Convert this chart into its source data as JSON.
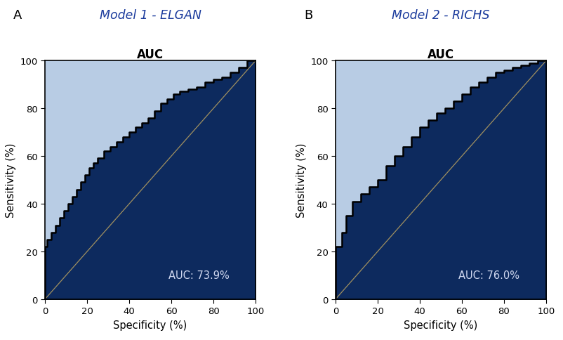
{
  "panel_A": {
    "title_panel": "A",
    "title_model": "Model 1 - ELGAN",
    "subtitle": "AUC",
    "auc_text": "AUC: 73.9%",
    "roc_spec": [
      100,
      100,
      99,
      97,
      95,
      93,
      91,
      89,
      87,
      85,
      83,
      81,
      79,
      77,
      75,
      72,
      69,
      66,
      63,
      60,
      57,
      54,
      51,
      48,
      45,
      42,
      39,
      36,
      32,
      28,
      24,
      20,
      16,
      12,
      8,
      4,
      0
    ],
    "roc_sens": [
      0,
      20,
      22,
      25,
      28,
      31,
      34,
      37,
      40,
      43,
      46,
      49,
      52,
      55,
      57,
      59,
      62,
      64,
      66,
      68,
      70,
      72,
      74,
      76,
      79,
      82,
      84,
      86,
      87,
      88,
      89,
      91,
      92,
      93,
      95,
      97,
      100
    ]
  },
  "panel_B": {
    "title_panel": "B",
    "title_model": "Model 2 - RICHS",
    "subtitle": "AUC",
    "auc_text": "AUC: 76.0%",
    "roc_spec": [
      100,
      100,
      99,
      97,
      95,
      92,
      88,
      84,
      80,
      76,
      72,
      68,
      64,
      60,
      56,
      52,
      48,
      44,
      40,
      36,
      32,
      28,
      24,
      20,
      16,
      12,
      8,
      4,
      0
    ],
    "roc_sens": [
      0,
      22,
      22,
      22,
      28,
      35,
      41,
      44,
      47,
      50,
      56,
      60,
      64,
      68,
      72,
      75,
      78,
      80,
      83,
      86,
      89,
      91,
      93,
      95,
      96,
      97,
      98,
      99,
      100
    ]
  },
  "color_roc_fill": "#0d2a5e",
  "color_roc_line": "#000000",
  "color_bg_fill": "#b8cce4",
  "color_diagonal": "#a09060",
  "color_auc_text": "#d0d8f0",
  "color_panel_bg": "#ffffff",
  "color_title": "#1a3a9c",
  "xlabel": "Specificity (%)",
  "ylabel": "Sensitivity (%)",
  "xticks": [
    0,
    20,
    40,
    60,
    80,
    100
  ],
  "xticklabels": [
    "100",
    "80",
    "60",
    "40",
    "20",
    "0"
  ],
  "yticks": [
    0,
    20,
    40,
    60,
    80,
    100
  ],
  "yticklabels": [
    "0",
    "20",
    "40",
    "60",
    "80",
    "100"
  ]
}
